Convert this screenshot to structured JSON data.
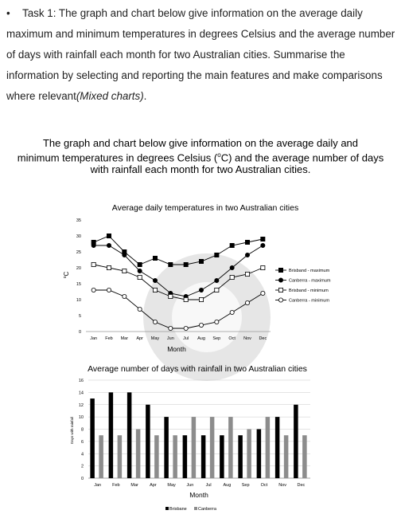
{
  "task": {
    "bullet": "•",
    "text": "Task 1: The graph and chart below give information on the average daily maximum and minimum temperatures in degrees Celsius and the average number of days with rainfall each month for two Australian cities. Summarise the information by selecting and reporting the main features and make comparisons where relevant",
    "suffix": "(Mixed charts)",
    "end": "."
  },
  "heading": {
    "line1": "The graph and chart below give information on the average daily and",
    "line2a": "minimum temperatures in degrees Celsius (",
    "line2sup": "o",
    "line2b": "C) and the average number of days",
    "line3": "with rainfall each month for two Australian cities."
  },
  "colors": {
    "black": "#000000",
    "gray": "#8c8c8c",
    "grid": "#c8c8c8",
    "watermark": "#e6e6e6"
  },
  "watermark": {
    "icon": "circle-logo-watermark-icon"
  },
  "chart_data": [
    {
      "type": "line",
      "title": "Average daily temperatures in two Australian cities",
      "xlabel": "Month",
      "ylabel": "oC",
      "categories": [
        "Jan",
        "Feb",
        "Mar",
        "Apr",
        "May",
        "Jun",
        "Jul",
        "Aug",
        "Sep",
        "Oct",
        "Nov",
        "Dec"
      ],
      "ylim": [
        0,
        35
      ],
      "yticks": [
        0,
        5,
        10,
        15,
        20,
        25,
        30,
        35
      ],
      "grid": false,
      "legend_position": "right",
      "series": [
        {
          "name": "Brisband - maximum",
          "marker": "filled-square",
          "values": [
            28,
            30,
            25,
            21,
            23,
            21,
            21,
            22,
            24,
            27,
            28,
            29
          ]
        },
        {
          "name": "Canberra - maximum",
          "marker": "filled-circle",
          "values": [
            27,
            27,
            24,
            19,
            16,
            12,
            11,
            13,
            16,
            20,
            24,
            27
          ]
        },
        {
          "name": "Brisband - minimum",
          "marker": "open-square",
          "values": [
            21,
            20,
            19,
            17,
            13,
            11,
            10,
            10,
            13,
            17,
            18,
            20
          ]
        },
        {
          "name": "Canberra - minimum",
          "marker": "open-circle",
          "values": [
            13,
            13,
            11,
            7,
            3,
            1,
            1,
            2,
            3,
            6,
            9,
            12
          ]
        }
      ]
    },
    {
      "type": "bar",
      "title": "Average number of days with rainfall in two Australian cities",
      "xlabel": "Month",
      "ylabel": "Days with rainfall",
      "categories": [
        "Jan",
        "Feb",
        "Mar",
        "Apr",
        "May",
        "Jun",
        "Jul",
        "Aug",
        "Sep",
        "Oct",
        "Nov",
        "Dec"
      ],
      "ylim": [
        0,
        16
      ],
      "yticks": [
        0,
        2,
        4,
        6,
        8,
        10,
        12,
        14,
        16
      ],
      "grid": true,
      "legend_position": "bottom",
      "series": [
        {
          "name": "Brisbane",
          "color": "#000000",
          "values": [
            13,
            14,
            14,
            12,
            10,
            7,
            7,
            7,
            7,
            8,
            10,
            12
          ]
        },
        {
          "name": "Canberra",
          "color": "#8c8c8c",
          "values": [
            7,
            7,
            8,
            7,
            7,
            10,
            10,
            10,
            8,
            10,
            7,
            7
          ]
        }
      ]
    }
  ]
}
